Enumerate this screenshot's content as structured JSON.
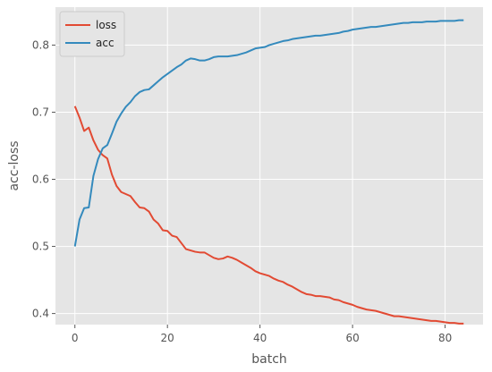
{
  "chart_data": {
    "type": "line",
    "xlabel": "batch",
    "ylabel": "acc-loss",
    "xlim": [
      -4.2,
      88.2
    ],
    "ylim": [
      0.3835,
      0.8565
    ],
    "grid": true,
    "legend": "upper-left",
    "x_ticks": [
      0,
      20,
      40,
      60,
      80
    ],
    "x_tick_labels": [
      "0",
      "20",
      "40",
      "60",
      "80"
    ],
    "y_ticks": [
      0.4,
      0.5,
      0.6,
      0.7,
      0.8
    ],
    "y_tick_labels": [
      "0.4",
      "0.5",
      "0.6",
      "0.7",
      "0.8"
    ],
    "x": [
      0,
      1,
      2,
      3,
      4,
      5,
      6,
      7,
      8,
      9,
      10,
      11,
      12,
      13,
      14,
      15,
      16,
      17,
      18,
      19,
      20,
      21,
      22,
      23,
      24,
      25,
      26,
      27,
      28,
      29,
      30,
      31,
      32,
      33,
      34,
      35,
      36,
      37,
      38,
      39,
      40,
      41,
      42,
      43,
      44,
      45,
      46,
      47,
      48,
      49,
      50,
      51,
      52,
      53,
      54,
      55,
      56,
      57,
      58,
      59,
      60,
      61,
      62,
      63,
      64,
      65,
      66,
      67,
      68,
      69,
      70,
      71,
      72,
      73,
      74,
      75,
      76,
      77,
      78,
      79,
      80,
      81,
      82,
      83,
      84
    ],
    "series": [
      {
        "name": "loss",
        "color": "#e24a33",
        "values": [
          0.709,
          0.692,
          0.672,
          0.677,
          0.658,
          0.644,
          0.636,
          0.631,
          0.607,
          0.59,
          0.581,
          0.578,
          0.575,
          0.566,
          0.558,
          0.557,
          0.552,
          0.54,
          0.534,
          0.524,
          0.523,
          0.516,
          0.514,
          0.505,
          0.496,
          0.494,
          0.492,
          0.491,
          0.491,
          0.487,
          0.483,
          0.481,
          0.482,
          0.485,
          0.483,
          0.48,
          0.476,
          0.472,
          0.468,
          0.463,
          0.46,
          0.458,
          0.456,
          0.452,
          0.449,
          0.447,
          0.443,
          0.44,
          0.436,
          0.432,
          0.429,
          0.428,
          0.426,
          0.426,
          0.425,
          0.424,
          0.421,
          0.42,
          0.417,
          0.415,
          0.413,
          0.41,
          0.408,
          0.406,
          0.405,
          0.404,
          0.402,
          0.4,
          0.398,
          0.396,
          0.396,
          0.395,
          0.394,
          0.393,
          0.392,
          0.391,
          0.39,
          0.389,
          0.389,
          0.388,
          0.387,
          0.386,
          0.386,
          0.385,
          0.385
        ]
      },
      {
        "name": "acc",
        "color": "#348abd",
        "values": [
          0.5,
          0.54,
          0.557,
          0.558,
          0.605,
          0.63,
          0.646,
          0.651,
          0.668,
          0.686,
          0.698,
          0.708,
          0.715,
          0.724,
          0.73,
          0.733,
          0.734,
          0.74,
          0.746,
          0.752,
          0.757,
          0.762,
          0.767,
          0.771,
          0.777,
          0.78,
          0.779,
          0.777,
          0.777,
          0.779,
          0.782,
          0.783,
          0.783,
          0.783,
          0.784,
          0.785,
          0.787,
          0.789,
          0.792,
          0.795,
          0.796,
          0.797,
          0.8,
          0.802,
          0.804,
          0.806,
          0.807,
          0.809,
          0.81,
          0.811,
          0.812,
          0.813,
          0.814,
          0.814,
          0.815,
          0.816,
          0.817,
          0.818,
          0.82,
          0.821,
          0.823,
          0.824,
          0.825,
          0.826,
          0.827,
          0.827,
          0.828,
          0.829,
          0.83,
          0.831,
          0.832,
          0.833,
          0.833,
          0.834,
          0.834,
          0.834,
          0.835,
          0.835,
          0.835,
          0.836,
          0.836,
          0.836,
          0.836,
          0.837,
          0.837
        ]
      }
    ]
  }
}
